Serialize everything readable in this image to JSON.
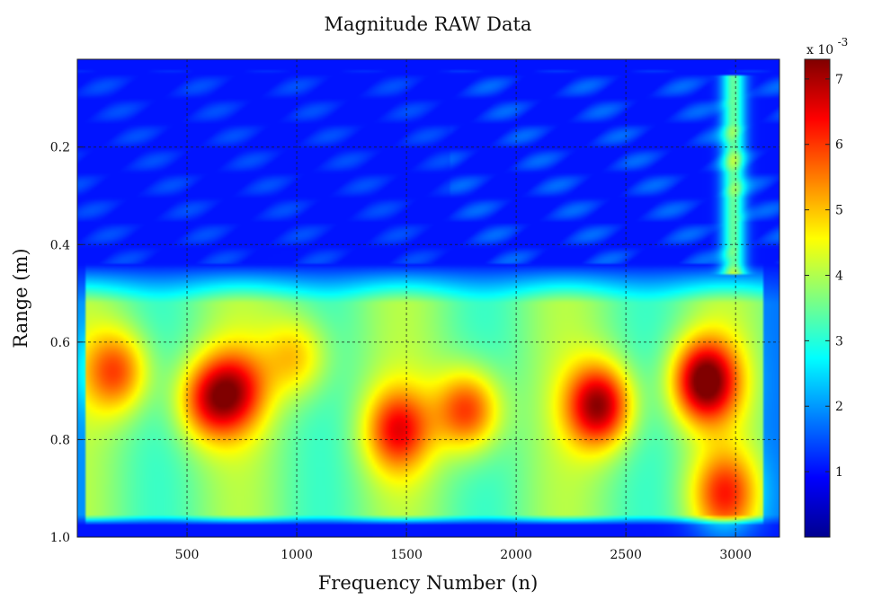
{
  "chart_data": {
    "type": "heatmap",
    "title": "Magnitude RAW Data",
    "xlabel": "Frequency Number (n)",
    "ylabel": "Range (m)",
    "xlim": [
      0,
      3200
    ],
    "ylim": [
      1.0,
      0.02
    ],
    "x_ticks": [
      500,
      1000,
      1500,
      2000,
      2500,
      3000
    ],
    "x_tick_labels": [
      "500",
      "1000",
      "1500",
      "2000",
      "2500",
      "3000"
    ],
    "y_ticks": [
      0.2,
      0.4,
      0.6,
      0.8,
      1.0
    ],
    "y_tick_labels": [
      "0.2",
      "0.4",
      "0.6",
      "0.8",
      "1.0"
    ],
    "grid": true,
    "colormap": "jet",
    "colorbar": {
      "range": [
        0,
        7.3
      ],
      "ticks": [
        1,
        2,
        3,
        4,
        5,
        6,
        7
      ],
      "tick_labels": [
        "1",
        "2",
        "3",
        "4",
        "5",
        "6",
        "7"
      ],
      "multiplier_base": "x 10",
      "multiplier_exponent": "-3"
    },
    "hotspots": [
      {
        "x": 180,
        "y": 0.66,
        "value": 5.6
      },
      {
        "x": 590,
        "y": 0.72,
        "value": 5.4
      },
      {
        "x": 720,
        "y": 0.7,
        "value": 5.6
      },
      {
        "x": 1000,
        "y": 0.63,
        "value": 4.9
      },
      {
        "x": 1460,
        "y": 0.78,
        "value": 5.8
      },
      {
        "x": 1780,
        "y": 0.74,
        "value": 6.0
      },
      {
        "x": 2380,
        "y": 0.73,
        "value": 6.8
      },
      {
        "x": 2860,
        "y": 0.68,
        "value": 7.2
      },
      {
        "x": 2950,
        "y": 0.91,
        "value": 5.5
      }
    ]
  }
}
